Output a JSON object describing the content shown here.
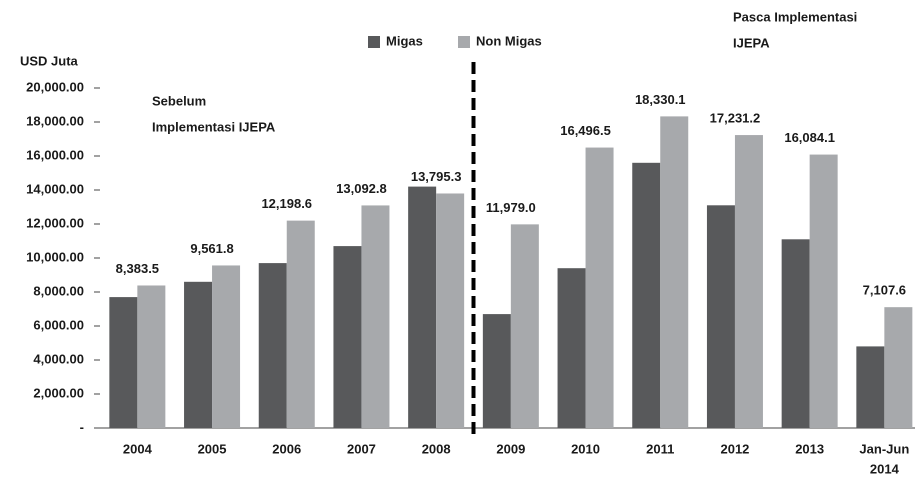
{
  "chart_data": {
    "type": "bar",
    "y_label": "USD Juta",
    "annotations": [
      {
        "lines": [
          "Sebelum",
          "Implementasi IJEPA"
        ]
      },
      {
        "lines": [
          "Pasca Implementasi",
          "IJEPA"
        ]
      }
    ],
    "categories": [
      "2004",
      "2005",
      "2006",
      "2007",
      "2008",
      "2009",
      "2010",
      "2011",
      "2012",
      "2013",
      [
        "Jan-Jun",
        "2014"
      ]
    ],
    "series": [
      {
        "name": "Migas",
        "color": "#58595b",
        "values": [
          7700,
          8600,
          9700,
          10700,
          14200,
          6700,
          9400,
          15600,
          13100,
          11100,
          4800
        ]
      },
      {
        "name": "Non Migas",
        "color": "#a7a9ac",
        "values": [
          8383.5,
          9561.8,
          12198.6,
          13092.8,
          13795.3,
          11979.0,
          16496.5,
          18330.1,
          17231.2,
          16084.1,
          7107.6
        ],
        "value_labels": [
          "8,383.5",
          "9,561.8",
          "12,198.6",
          "13,092.8",
          "13,795.3",
          "11,979.0",
          "16,496.5",
          "18,330.1",
          "17,231.2",
          "16,084.1",
          "7,107.6"
        ]
      }
    ],
    "ylim": [
      0,
      20000
    ],
    "yticks": [
      {
        "value": 0,
        "label": "-"
      },
      {
        "value": 2000,
        "label": "2,000.00"
      },
      {
        "value": 4000,
        "label": "4,000.00"
      },
      {
        "value": 6000,
        "label": "6,000.00"
      },
      {
        "value": 8000,
        "label": "8,000.00"
      },
      {
        "value": 10000,
        "label": "10,000.00"
      },
      {
        "value": 12000,
        "label": "12,000.00"
      },
      {
        "value": 14000,
        "label": "14,000.00"
      },
      {
        "value": 16000,
        "label": "16,000.00"
      },
      {
        "value": 18000,
        "label": "18,000.00"
      },
      {
        "value": 20000,
        "label": "20,000.00"
      }
    ]
  }
}
